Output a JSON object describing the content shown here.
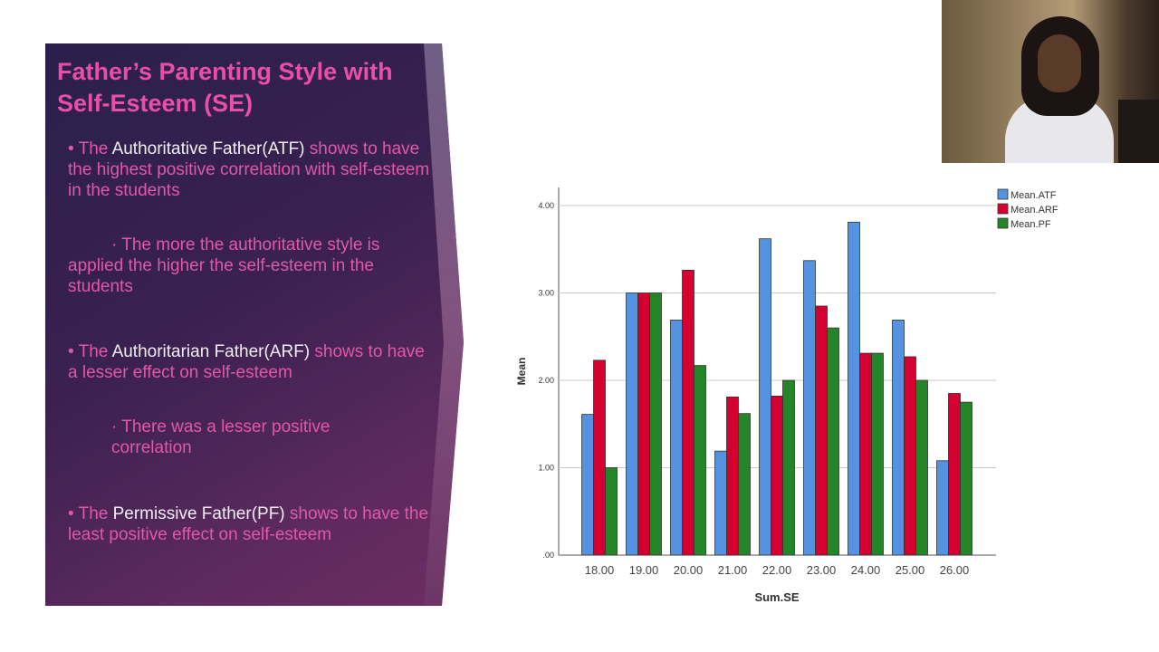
{
  "slide": {
    "title": "Father’s Parenting Style with Self-Esteem (SE)",
    "bullets": [
      {
        "pre": "• The ",
        "highlight": "Authoritative Father(ATF)",
        "post": " shows to have the highest positive correlation with self-esteem in the students",
        "sub": "· The more the authoritative style is applied the higher the self-esteem in  the students"
      },
      {
        "pre": "• The ",
        "highlight": "Authoritarian Father(ARF)",
        "post": " shows to have a lesser effect on self-esteem",
        "sub": "· There was a lesser positive correlation"
      },
      {
        "pre": "• The ",
        "highlight": "Permissive Father(PF)",
        "post": " shows to have the least positive effect on self-esteem"
      }
    ]
  },
  "chart_data": {
    "type": "bar",
    "title": "",
    "xlabel": "Sum.SE",
    "ylabel": "Mean",
    "ylim": [
      0,
      4
    ],
    "yticks": [
      ".00",
      "1.00",
      "2.00",
      "3.00",
      "4.00"
    ],
    "grid": true,
    "legend": "top-right",
    "categories": [
      "18.00",
      "19.00",
      "20.00",
      "21.00",
      "22.00",
      "23.00",
      "24.00",
      "25.00",
      "26.00"
    ],
    "series": [
      {
        "name": "Mean.ATF",
        "color": "#5592e0",
        "values": [
          1.61,
          3.0,
          2.69,
          1.19,
          3.62,
          3.37,
          3.81,
          2.69,
          1.08
        ]
      },
      {
        "name": "Mean.ARF",
        "color": "#d4002f",
        "values": [
          2.23,
          3.0,
          3.26,
          1.81,
          1.82,
          2.85,
          2.31,
          2.27,
          1.85
        ]
      },
      {
        "name": "Mean.PF",
        "color": "#248428",
        "values": [
          1.0,
          3.0,
          2.17,
          1.62,
          2.0,
          2.6,
          2.31,
          2.0,
          1.75
        ]
      }
    ]
  }
}
